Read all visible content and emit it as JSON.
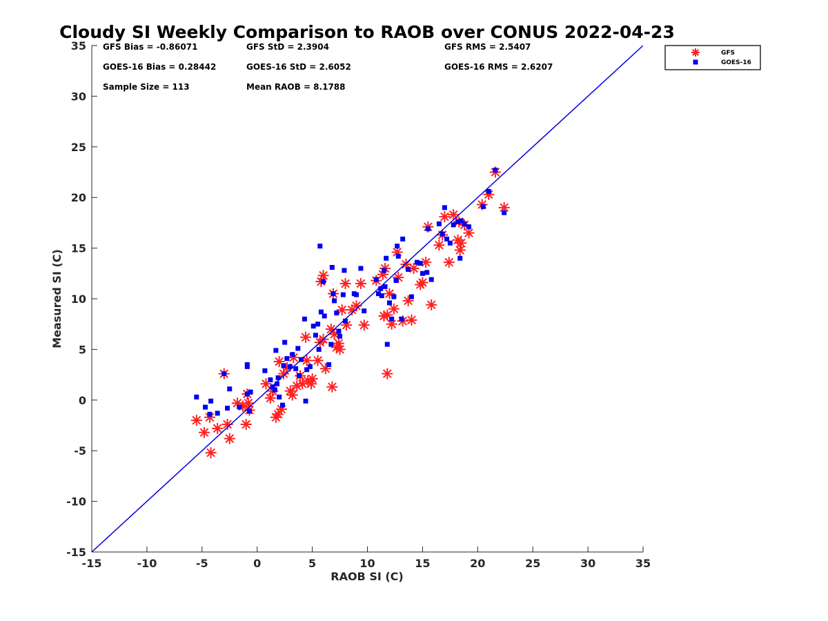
{
  "chart_data": {
    "type": "scatter",
    "title": "Cloudy SI Weekly Comparison to RAOB over CONUS 2022-04-23",
    "xlabel": "RAOB SI (C)",
    "ylabel": "Measured SI (C)",
    "xlim": [
      -15,
      35
    ],
    "ylim": [
      -15,
      35
    ],
    "xticks": [
      "-15",
      "-10",
      "-5",
      "0",
      "5",
      "10",
      "15",
      "20",
      "25",
      "30",
      "35"
    ],
    "yticks": [
      "-15",
      "-10",
      "-5",
      "0",
      "5",
      "10",
      "15",
      "20",
      "25",
      "30",
      "35"
    ],
    "grid": false,
    "legend_position": "top-right",
    "reference_line": {
      "x": [
        -15,
        35
      ],
      "y": [
        -15,
        35
      ],
      "color": "#0000e0"
    },
    "stats": [
      [
        "GFS Bias = -0.86071",
        "GFS StD = 2.3904",
        "GFS RMS = 2.5407"
      ],
      [
        "GOES-16 Bias = 0.28442",
        "GOES-16 StD = 2.6052",
        "GOES-16 RMS = 2.6207"
      ],
      [
        "Sample Size = 113",
        "Mean RAOB = 8.1788",
        ""
      ]
    ],
    "series": [
      {
        "name": "GFS",
        "marker": "asterisk",
        "color": "#ff2020",
        "points": [
          [
            -5.5,
            -2.0
          ],
          [
            -4.8,
            -3.2
          ],
          [
            -4.3,
            -1.7
          ],
          [
            -4.2,
            -5.2
          ],
          [
            -3.6,
            -2.8
          ],
          [
            -3.0,
            2.6
          ],
          [
            -2.7,
            -2.4
          ],
          [
            -2.5,
            -3.8
          ],
          [
            -1.8,
            -0.3
          ],
          [
            -1.3,
            -0.6
          ],
          [
            -1.0,
            -2.4
          ],
          [
            -0.9,
            0.6
          ],
          [
            -0.8,
            -0.3
          ],
          [
            -0.7,
            -1.0
          ],
          [
            0.8,
            1.6
          ],
          [
            1.2,
            0.2
          ],
          [
            1.4,
            0.9
          ],
          [
            1.7,
            -1.7
          ],
          [
            1.9,
            -1.4
          ],
          [
            2.0,
            3.8
          ],
          [
            2.2,
            -0.9
          ],
          [
            2.4,
            2.6
          ],
          [
            2.7,
            3.2
          ],
          [
            3.0,
            0.9
          ],
          [
            3.2,
            0.5
          ],
          [
            3.3,
            4.2
          ],
          [
            3.6,
            1.4
          ],
          [
            3.9,
            2.4
          ],
          [
            4.1,
            1.6
          ],
          [
            4.4,
            6.2
          ],
          [
            4.5,
            3.9
          ],
          [
            4.6,
            1.9
          ],
          [
            4.9,
            1.6
          ],
          [
            5.0,
            2.1
          ],
          [
            5.5,
            3.9
          ],
          [
            5.7,
            5.7
          ],
          [
            5.8,
            11.7
          ],
          [
            6.0,
            12.3
          ],
          [
            6.0,
            6.0
          ],
          [
            6.2,
            3.1
          ],
          [
            6.7,
            7.0
          ],
          [
            6.8,
            1.3
          ],
          [
            6.9,
            10.5
          ],
          [
            7.0,
            6.5
          ],
          [
            7.2,
            5.2
          ],
          [
            7.4,
            5.6
          ],
          [
            7.5,
            5.0
          ],
          [
            7.7,
            8.9
          ],
          [
            8.0,
            11.5
          ],
          [
            8.1,
            7.4
          ],
          [
            8.6,
            8.9
          ],
          [
            9.0,
            9.3
          ],
          [
            9.4,
            11.5
          ],
          [
            9.7,
            7.4
          ],
          [
            10.8,
            11.8
          ],
          [
            11.4,
            12.4
          ],
          [
            11.5,
            8.3
          ],
          [
            11.6,
            13.0
          ],
          [
            11.8,
            8.4
          ],
          [
            11.8,
            2.6
          ],
          [
            12.0,
            10.5
          ],
          [
            12.2,
            7.5
          ],
          [
            12.4,
            9.0
          ],
          [
            12.7,
            14.6
          ],
          [
            12.8,
            12.1
          ],
          [
            13.2,
            7.8
          ],
          [
            13.5,
            13.4
          ],
          [
            13.7,
            9.8
          ],
          [
            14.0,
            7.9
          ],
          [
            14.2,
            13.0
          ],
          [
            14.8,
            11.4
          ],
          [
            15.0,
            11.6
          ],
          [
            15.3,
            13.6
          ],
          [
            15.5,
            17.1
          ],
          [
            15.8,
            9.4
          ],
          [
            16.5,
            15.3
          ],
          [
            16.8,
            16.3
          ],
          [
            17.0,
            18.1
          ],
          [
            17.4,
            13.6
          ],
          [
            17.8,
            18.3
          ],
          [
            18.2,
            15.8
          ],
          [
            18.3,
            17.6
          ],
          [
            18.4,
            14.8
          ],
          [
            18.5,
            15.5
          ],
          [
            18.8,
            17.3
          ],
          [
            19.2,
            16.5
          ],
          [
            20.4,
            19.3
          ],
          [
            21.0,
            20.3
          ],
          [
            21.6,
            22.5
          ],
          [
            22.4,
            19.0
          ]
        ]
      },
      {
        "name": "GOES-16",
        "marker": "square",
        "color": "#0000f0",
        "points": [
          [
            -5.5,
            0.3
          ],
          [
            -4.7,
            -0.7
          ],
          [
            -4.3,
            -1.4
          ],
          [
            -4.2,
            -0.1
          ],
          [
            -3.6,
            -1.3
          ],
          [
            -3.0,
            2.6
          ],
          [
            -2.7,
            -0.8
          ],
          [
            -2.5,
            1.1
          ],
          [
            -1.6,
            -0.7
          ],
          [
            -0.9,
            3.3
          ],
          [
            -0.9,
            3.5
          ],
          [
            -0.9,
            0.6
          ],
          [
            -0.7,
            -1.1
          ],
          [
            -0.6,
            0.8
          ],
          [
            0.7,
            2.9
          ],
          [
            1.2,
            2.0
          ],
          [
            1.4,
            1.3
          ],
          [
            1.6,
            1.0
          ],
          [
            1.7,
            4.9
          ],
          [
            1.8,
            1.6
          ],
          [
            1.9,
            2.2
          ],
          [
            2.0,
            0.3
          ],
          [
            2.3,
            -0.5
          ],
          [
            2.4,
            3.4
          ],
          [
            2.5,
            5.7
          ],
          [
            2.7,
            4.1
          ],
          [
            3.0,
            3.3
          ],
          [
            3.2,
            4.5
          ],
          [
            3.5,
            3.1
          ],
          [
            3.7,
            5.1
          ],
          [
            3.8,
            2.4
          ],
          [
            4.0,
            4.0
          ],
          [
            4.3,
            8.0
          ],
          [
            4.4,
            -0.1
          ],
          [
            4.5,
            3.0
          ],
          [
            4.8,
            3.3
          ],
          [
            5.1,
            7.3
          ],
          [
            5.3,
            6.4
          ],
          [
            5.5,
            7.5
          ],
          [
            5.6,
            5.0
          ],
          [
            5.7,
            15.2
          ],
          [
            5.8,
            8.7
          ],
          [
            6.0,
            11.7
          ],
          [
            6.1,
            8.3
          ],
          [
            6.5,
            3.5
          ],
          [
            6.7,
            5.5
          ],
          [
            6.8,
            13.1
          ],
          [
            6.9,
            10.5
          ],
          [
            7.0,
            9.8
          ],
          [
            7.2,
            8.6
          ],
          [
            7.4,
            6.8
          ],
          [
            7.5,
            6.3
          ],
          [
            7.8,
            10.4
          ],
          [
            7.9,
            12.8
          ],
          [
            8.0,
            7.8
          ],
          [
            8.8,
            10.5
          ],
          [
            9.0,
            10.4
          ],
          [
            9.4,
            13.0
          ],
          [
            9.7,
            8.8
          ],
          [
            10.8,
            11.9
          ],
          [
            11.0,
            10.5
          ],
          [
            11.2,
            11.0
          ],
          [
            11.3,
            10.3
          ],
          [
            11.5,
            12.8
          ],
          [
            11.6,
            11.2
          ],
          [
            11.7,
            14.0
          ],
          [
            11.8,
            5.5
          ],
          [
            12.0,
            9.6
          ],
          [
            12.2,
            8.0
          ],
          [
            12.4,
            10.2
          ],
          [
            12.6,
            11.8
          ],
          [
            12.7,
            15.2
          ],
          [
            12.8,
            14.2
          ],
          [
            13.1,
            8.0
          ],
          [
            13.2,
            15.9
          ],
          [
            13.7,
            12.9
          ],
          [
            14.0,
            10.2
          ],
          [
            14.5,
            13.6
          ],
          [
            14.8,
            13.5
          ],
          [
            15.0,
            12.5
          ],
          [
            15.4,
            12.6
          ],
          [
            15.5,
            16.9
          ],
          [
            15.8,
            11.9
          ],
          [
            16.5,
            17.4
          ],
          [
            16.8,
            16.4
          ],
          [
            17.0,
            19.0
          ],
          [
            17.2,
            15.9
          ],
          [
            17.5,
            15.5
          ],
          [
            17.8,
            17.3
          ],
          [
            18.2,
            17.6
          ],
          [
            18.4,
            14.0
          ],
          [
            18.5,
            17.7
          ],
          [
            18.8,
            17.4
          ],
          [
            19.2,
            17.1
          ],
          [
            20.5,
            19.1
          ],
          [
            21.0,
            20.6
          ],
          [
            21.6,
            22.7
          ],
          [
            22.4,
            18.5
          ]
        ]
      }
    ]
  }
}
